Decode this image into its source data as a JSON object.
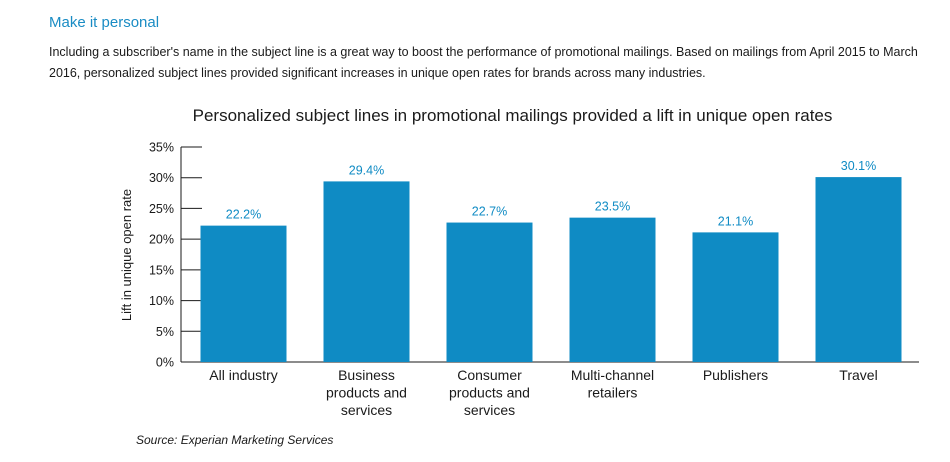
{
  "heading": "Make it personal",
  "intro": "Including a subscriber's name in the subject line is a great way to boost the performance of promotional mailings. Based on mailings from April 2015 to March 2016, personalized subject lines provided significant increases in unique open rates for brands across many industries.",
  "source": "Source: Experian Marketing Services",
  "colors": {
    "bar": "#0f8bc4",
    "data_label": "#0f8bc4",
    "heading": "#1a8cc4"
  },
  "chart_data": {
    "type": "bar",
    "title": "Personalized subject lines in promotional mailings provided a lift in unique open rates",
    "xlabel": "",
    "ylabel": "Lift in unique open rate",
    "ylim": [
      0,
      35
    ],
    "yticks": [
      0,
      5,
      10,
      15,
      20,
      25,
      30,
      35
    ],
    "ytick_labels": [
      "0%",
      "5%",
      "10%",
      "15%",
      "20%",
      "25%",
      "30%",
      "35%"
    ],
    "categories": [
      [
        "All industry"
      ],
      [
        "Business",
        "products and",
        "services"
      ],
      [
        "Consumer",
        "products and",
        "services"
      ],
      [
        "Multi-channel",
        "retailers"
      ],
      [
        "Publishers"
      ],
      [
        "Travel"
      ]
    ],
    "values": [
      22.2,
      29.4,
      22.7,
      23.5,
      21.1,
      30.1
    ],
    "data_labels": [
      "22.2%",
      "29.4%",
      "22.7%",
      "23.5%",
      "21.1%",
      "30.1%"
    ],
    "grid": false,
    "legend": "none"
  }
}
